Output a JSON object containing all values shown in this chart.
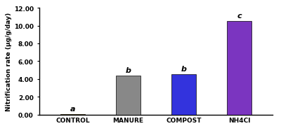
{
  "categories": [
    "CONTROL",
    "MANURE",
    "COMPOST",
    "NH4Cl"
  ],
  "values": [
    0.05,
    4.38,
    4.55,
    10.5
  ],
  "bar_colors": [
    "#c8a020",
    "#888888",
    "#3333dd",
    "#7b35c0"
  ],
  "stat_labels": [
    "a",
    "b",
    "b",
    "c"
  ],
  "ylabel": "Nitrification rate (µg/g/day)",
  "ylim": [
    0,
    12.0
  ],
  "yticks": [
    0.0,
    2.0,
    4.0,
    6.0,
    8.0,
    10.0,
    12.0
  ],
  "bar_width": 0.45,
  "stat_label_fontsize": 8,
  "tick_label_fontsize": 6.5,
  "ylabel_fontsize": 6.5,
  "background_color": "#ffffff",
  "edge_color": "#000000"
}
